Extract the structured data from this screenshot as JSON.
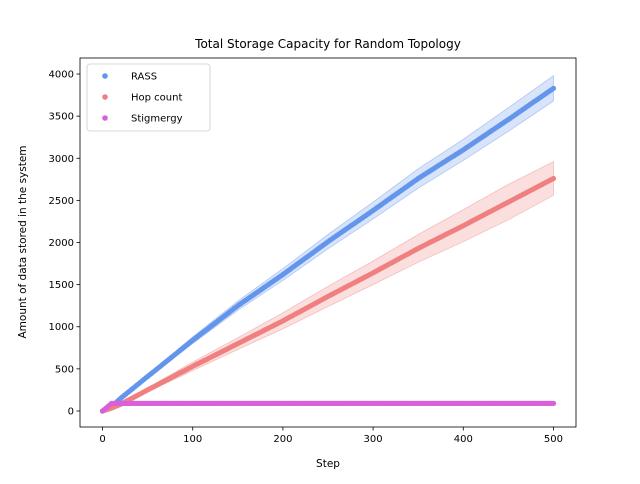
{
  "chart_data": {
    "type": "scatter",
    "title": "Total Storage Capacity for Random Topology",
    "xlabel": "Step",
    "ylabel": "Amount of data stored in the system",
    "xlim": [
      -25,
      525
    ],
    "ylim": [
      -190,
      4190
    ],
    "xticks": [
      0,
      100,
      200,
      300,
      400,
      500
    ],
    "yticks": [
      0,
      500,
      1000,
      1500,
      2000,
      2500,
      3000,
      3500,
      4000
    ],
    "grid": false,
    "legend_position": "top-left",
    "series": [
      {
        "name": "RASS",
        "color": "#6495ed",
        "x": [
          0,
          10,
          20,
          50,
          100,
          150,
          200,
          250,
          300,
          350,
          400,
          450,
          500
        ],
        "y": [
          0,
          55,
          150,
          410,
          840,
          1250,
          1620,
          2010,
          2380,
          2760,
          3100,
          3460,
          3830
        ],
        "band_low": [
          0,
          50,
          140,
          390,
          800,
          1195,
          1550,
          1925,
          2280,
          2645,
          2975,
          3320,
          3680
        ],
        "band_high": [
          0,
          60,
          160,
          430,
          880,
          1305,
          1690,
          2095,
          2480,
          2875,
          3225,
          3600,
          3980
        ]
      },
      {
        "name": "Hop count",
        "color": "#f08080",
        "x": [
          0,
          10,
          20,
          50,
          100,
          150,
          200,
          250,
          300,
          350,
          400,
          450,
          500
        ],
        "y": [
          0,
          35,
          80,
          250,
          530,
          800,
          1070,
          1360,
          1640,
          1930,
          2200,
          2480,
          2760
        ],
        "band_low": [
          0,
          30,
          70,
          225,
          480,
          730,
          975,
          1240,
          1500,
          1765,
          2010,
          2270,
          2560
        ],
        "band_high": [
          0,
          40,
          90,
          275,
          580,
          870,
          1165,
          1480,
          1780,
          2095,
          2390,
          2690,
          2960
        ]
      },
      {
        "name": "Stigmergy",
        "color": "#da5fda",
        "x": [
          0,
          10,
          20,
          50,
          100,
          150,
          200,
          250,
          300,
          350,
          400,
          450,
          500
        ],
        "y": [
          0,
          90,
          90,
          90,
          90,
          90,
          90,
          90,
          90,
          90,
          90,
          90,
          90
        ]
      }
    ]
  }
}
